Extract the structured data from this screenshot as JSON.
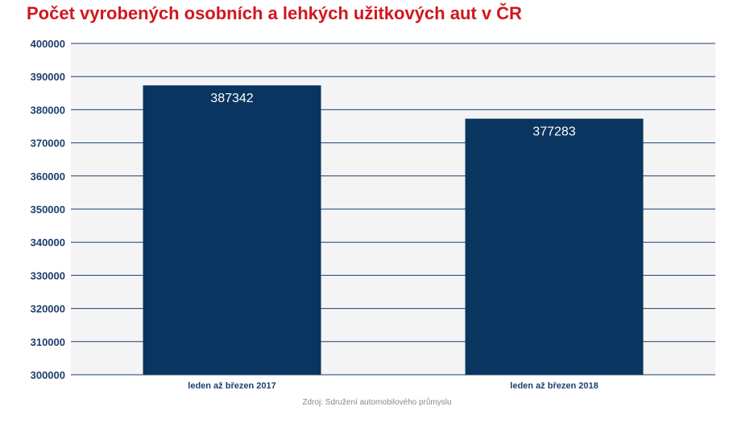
{
  "chart_data": {
    "type": "bar",
    "title": "Počet vyrobených osobních a lehkých užitkových aut v ČR",
    "categories": [
      "leden až březen 2017",
      "leden až březen 2018"
    ],
    "values": [
      387342,
      377283
    ],
    "value_labels": [
      "387342",
      "377283"
    ],
    "ylim": [
      300000,
      400000
    ],
    "yticks": [
      300000,
      310000,
      320000,
      330000,
      340000,
      350000,
      360000,
      370000,
      380000,
      390000,
      400000
    ],
    "ytick_labels": [
      "300000",
      "310000",
      "320000",
      "330000",
      "340000",
      "350000",
      "360000",
      "370000",
      "380000",
      "390000",
      "400000"
    ],
    "xlabel": "",
    "ylabel": "",
    "grid": true,
    "legend": "none",
    "source": "Zdroj: Sdružení automobilového průmyslu",
    "colors": {
      "bar": "#0a3560",
      "title": "#d0171e",
      "tick_text": "#1d3f6e",
      "grid": "#1d3f6e",
      "plot_background": "#f4f4f4",
      "value_label": "#ffffff",
      "source": "#8a8a8a"
    }
  }
}
